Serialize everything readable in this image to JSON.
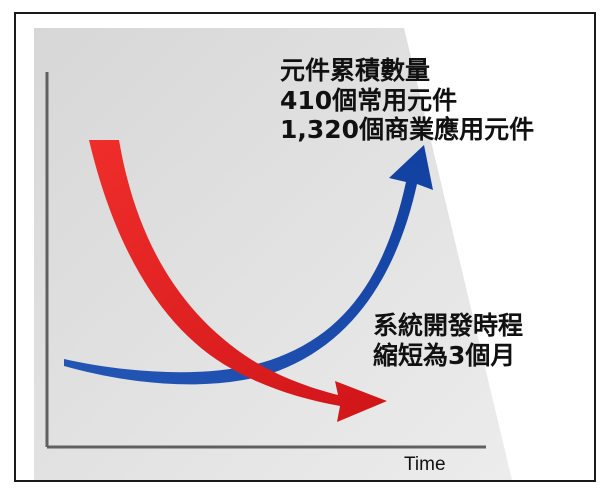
{
  "figure": {
    "top_text": [
      "元件累積數量",
      "410個常用元件",
      "1,320個商業應用元件"
    ],
    "mid_text": [
      "系統開發時程",
      "縮短為3個月"
    ],
    "axis_label": "Time",
    "colors": {
      "background_panel": "#e6e6e6",
      "red_arrow": "#e8201f",
      "blue_arrow": "#1749a8",
      "axis": "#5f5f5f"
    }
  }
}
